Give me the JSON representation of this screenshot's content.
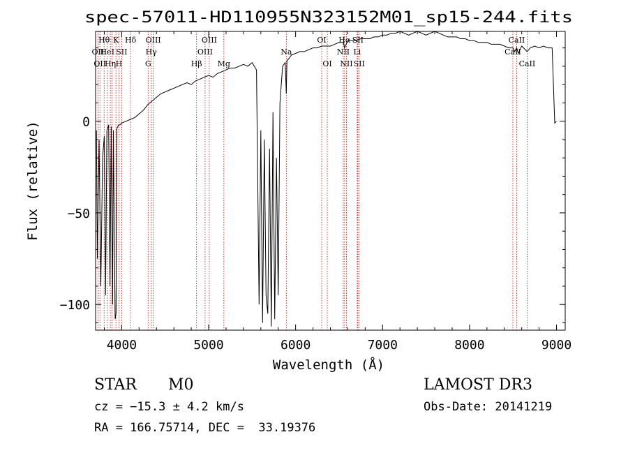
{
  "chart_data": {
    "type": "line",
    "title": "spec-57011-HD110955N323152M01_sp15-244.fits",
    "xlabel": "Wavelength (Å)",
    "ylabel": "Flux (relative)",
    "xlim": [
      3700,
      9100
    ],
    "ylim": [
      -114,
      49
    ],
    "x_ticks": [
      4000,
      5000,
      6000,
      7000,
      8000,
      9000
    ],
    "x_tick_labels": [
      "4000",
      "5000",
      "6000",
      "7000",
      "8000",
      "9000"
    ],
    "y_ticks": [
      0,
      -50,
      -100
    ],
    "y_tick_labels": [
      "0",
      "−50",
      "−100"
    ],
    "grid": false,
    "series": [
      {
        "x": [
          3710,
          3720,
          3740,
          3760,
          3780,
          3800,
          3815,
          3830,
          3850,
          3865,
          3880,
          3895,
          3905,
          3915,
          3925,
          3935,
          3945,
          3955,
          3965,
          3980,
          4000,
          4050,
          4100,
          4150,
          4200,
          4250,
          4300,
          4350,
          4400,
          4450,
          4500,
          4550,
          4600,
          4650,
          4700,
          4750,
          4800,
          4850,
          4900,
          4950,
          5000,
          5050,
          5100,
          5150,
          5200,
          5250,
          5300,
          5350,
          5400,
          5450,
          5500,
          5550,
          5580,
          5600,
          5620,
          5640,
          5660,
          5680,
          5700,
          5720,
          5740,
          5760,
          5780,
          5800,
          5820,
          5850,
          5880,
          5893,
          5900,
          5920,
          5950,
          6000,
          6050,
          6100,
          6150,
          6200,
          6250,
          6300,
          6350,
          6400,
          6450,
          6500,
          6550,
          6563,
          6600,
          6650,
          6700,
          6750,
          6800,
          6850,
          6900,
          6950,
          7000,
          7050,
          7100,
          7150,
          7200,
          7250,
          7300,
          7350,
          7400,
          7450,
          7500,
          7550,
          7600,
          7650,
          7700,
          7750,
          7800,
          7850,
          7900,
          7950,
          8000,
          8050,
          8100,
          8150,
          8200,
          8250,
          8300,
          8350,
          8400,
          8450,
          8498,
          8520,
          8542,
          8560,
          8600,
          8662,
          8700,
          8750,
          8800,
          8850,
          8900,
          8950,
          8980,
          9000
        ],
        "y": [
          -5,
          -75,
          -10,
          -90,
          -20,
          -8,
          -95,
          -5,
          -2,
          -90,
          -3,
          -100,
          -5,
          -60,
          -108,
          -105,
          -4,
          -3,
          -2,
          -2,
          -1,
          0,
          1,
          2,
          4,
          6,
          9,
          11,
          13,
          15,
          16,
          17,
          18,
          19,
          20,
          21,
          20,
          22,
          23,
          24,
          25,
          24,
          26,
          27,
          28,
          29,
          29,
          30,
          31,
          30,
          32,
          28,
          -100,
          -5,
          -110,
          -10,
          -95,
          -105,
          -15,
          -112,
          5,
          -108,
          -20,
          -95,
          10,
          30,
          32,
          15,
          33,
          34,
          36,
          37,
          38,
          38,
          39,
          40,
          40,
          41,
          41,
          41,
          42,
          43,
          43,
          40,
          44,
          44,
          44,
          45,
          45,
          45,
          46,
          46,
          47,
          47,
          48,
          48,
          49,
          48,
          47,
          48,
          49,
          48,
          47,
          48,
          49,
          48,
          47,
          46,
          46,
          46,
          45,
          45,
          44,
          44,
          43,
          43,
          43,
          42,
          42,
          42,
          41,
          40,
          40,
          38,
          40,
          37,
          41,
          38,
          40,
          41,
          40,
          41,
          40,
          40,
          -1,
          0
        ]
      }
    ],
    "lines": [
      {
        "x": 3727,
        "labels": [
          {
            "text": "OII",
            "row": 2
          }
        ]
      },
      {
        "x": 3750,
        "labels": [
          {
            "text": "OII",
            "row": 3
          }
        ]
      },
      {
        "x": 3798,
        "labels": [
          {
            "text": "Hθ",
            "row": 1
          }
        ]
      },
      {
        "x": 3835,
        "labels": [
          {
            "text": "HeI",
            "row": 2
          }
        ]
      },
      {
        "x": 3869,
        "labels": [
          {
            "text": "Hη",
            "row": 3
          }
        ]
      },
      {
        "x": 3889,
        "labels": []
      },
      {
        "x": 3934,
        "labels": [
          {
            "text": "K",
            "row": 1
          }
        ]
      },
      {
        "x": 3969,
        "labels": [
          {
            "text": "H",
            "row": 3
          }
        ]
      },
      {
        "x": 4000,
        "labels": [
          {
            "text": "SII",
            "row": 2
          }
        ]
      },
      {
        "x": 4102,
        "labels": [
          {
            "text": "Hδ",
            "row": 1
          }
        ]
      },
      {
        "x": 4304,
        "labels": [
          {
            "text": "G",
            "row": 3
          }
        ]
      },
      {
        "x": 4340,
        "labels": [
          {
            "text": "Hγ",
            "row": 2
          }
        ]
      },
      {
        "x": 4363,
        "labels": [
          {
            "text": "OIII",
            "row": 1
          }
        ]
      },
      {
        "x": 4861,
        "labels": [
          {
            "text": "Hβ",
            "row": 3
          }
        ]
      },
      {
        "x": 4959,
        "labels": [
          {
            "text": "OIII",
            "row": 2
          }
        ]
      },
      {
        "x": 5007,
        "labels": [
          {
            "text": "OIII",
            "row": 1
          }
        ]
      },
      {
        "x": 5175,
        "labels": [
          {
            "text": "Mg",
            "row": 3
          }
        ]
      },
      {
        "x": 5893,
        "labels": [
          {
            "text": "Na",
            "row": 2
          }
        ]
      },
      {
        "x": 6300,
        "labels": [
          {
            "text": "OI",
            "row": 1
          }
        ]
      },
      {
        "x": 6364,
        "labels": [
          {
            "text": "OI",
            "row": 3
          }
        ]
      },
      {
        "x": 6548,
        "labels": [
          {
            "text": "NII",
            "row": 2
          }
        ]
      },
      {
        "x": 6563,
        "labels": [
          {
            "text": "Hα",
            "row": 1
          }
        ]
      },
      {
        "x": 6584,
        "labels": [
          {
            "text": "NII",
            "row": 3
          }
        ]
      },
      {
        "x": 6708,
        "labels": [
          {
            "text": "Li",
            "row": 2
          }
        ]
      },
      {
        "x": 6716,
        "labels": [
          {
            "text": "SII",
            "row": 1
          }
        ]
      },
      {
        "x": 6731,
        "labels": [
          {
            "text": "SII",
            "row": 3
          }
        ]
      },
      {
        "x": 8498,
        "labels": [
          {
            "text": "CaII",
            "row": 2
          }
        ]
      },
      {
        "x": 8542,
        "labels": [
          {
            "text": "CaII",
            "row": 1
          }
        ]
      },
      {
        "x": 8662,
        "labels": [
          {
            "text": "CaII",
            "row": 3
          }
        ]
      }
    ]
  },
  "info": {
    "object_class": "STAR",
    "subclass": "M0",
    "survey": "LAMOST DR3",
    "redshift": "cz = −15.3 ± 4.2 km/s",
    "obs_date": "Obs-Date: 20141219",
    "coords": "RA = 166.75714, DEC =  33.19376"
  },
  "colors": {
    "spectrum": "#000000",
    "line_markers": "#cc0000",
    "axes": "#000000",
    "background": "#ffffff"
  }
}
